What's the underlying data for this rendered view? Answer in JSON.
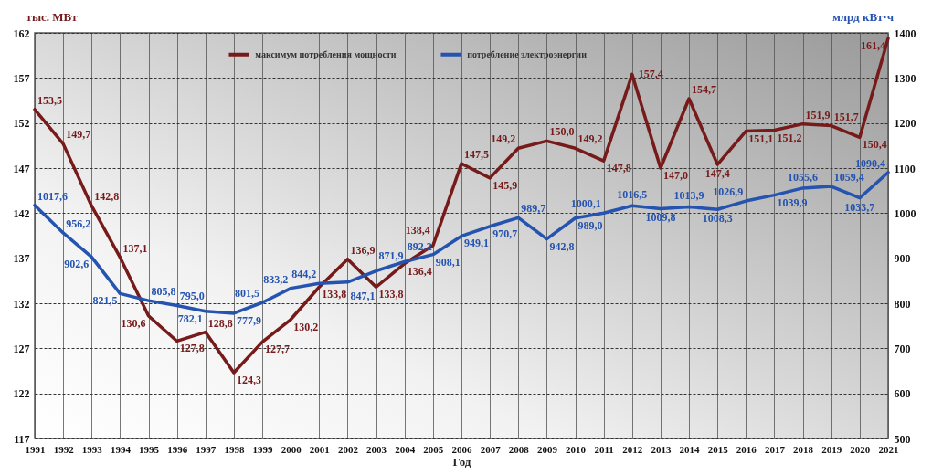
{
  "chart_data": {
    "type": "line",
    "xlabel": "Год",
    "ylabel": "тыс. МВт",
    "y2label": "млрд кВт·ч",
    "x": [
      1991,
      1992,
      1993,
      1994,
      1995,
      1996,
      1997,
      1998,
      1999,
      2000,
      2001,
      2002,
      2003,
      2004,
      2005,
      2006,
      2007,
      2008,
      2009,
      2010,
      2011,
      2012,
      2013,
      2014,
      2015,
      2016,
      2017,
      2018,
      2019,
      2020,
      2021
    ],
    "xlim": [
      1991,
      2021
    ],
    "xticks": [
      1991,
      1992,
      1993,
      1994,
      1995,
      1996,
      1997,
      1998,
      1999,
      2000,
      2001,
      2002,
      2003,
      2004,
      2005,
      2006,
      2007,
      2008,
      2009,
      2010,
      2011,
      2012,
      2013,
      2014,
      2015,
      2016,
      2017,
      2018,
      2019,
      2020,
      2021
    ],
    "ylim": [
      117,
      162
    ],
    "yticks": [
      117,
      122,
      127,
      132,
      137,
      142,
      147,
      152,
      157,
      162
    ],
    "y2lim": [
      500,
      1400
    ],
    "y2ticks": [
      500,
      600,
      700,
      800,
      900,
      1000,
      1100,
      1200,
      1300,
      1400
    ],
    "grid": true,
    "legend": "top",
    "series": [
      {
        "name": "максимум потребления мощности",
        "color": "#761a1a",
        "values": [
          153.5,
          149.7,
          142.8,
          137.1,
          130.6,
          127.8,
          128.8,
          124.3,
          127.7,
          130.2,
          133.8,
          136.9,
          133.8,
          136.4,
          138.4,
          147.5,
          145.9,
          149.2,
          150.0,
          149.2,
          147.8,
          157.4,
          147.0,
          154.7,
          147.4,
          151.1,
          151.2,
          151.9,
          151.7,
          150.4,
          161.4
        ],
        "value_labels": [
          "153,5",
          "149,7",
          "142,8",
          "137,1",
          "130,6",
          "127,8",
          "128,8",
          "124,3",
          "127,7",
          "130,2",
          "133,8",
          "136,9",
          "133,8",
          "136,4",
          "138,4",
          "147,5",
          "145,9",
          "149,2",
          "150,0",
          "149,2",
          "147,8",
          "157,4",
          "147,0",
          "154,7",
          "147,4",
          "151,1",
          "151,2",
          "151,9",
          "151,7",
          "150,4",
          "161,4"
        ]
      },
      {
        "name": "потребление электроэнергии",
        "color": "#2553b0",
        "axis": "y2",
        "values": [
          1017.6,
          956.2,
          902.6,
          821.5,
          805.8,
          795.0,
          782.1,
          777.9,
          801.5,
          833.2,
          844.2,
          847.1,
          871.9,
          892.2,
          908.1,
          949.1,
          970.7,
          989.7,
          942.8,
          989.0,
          1000.1,
          1016.5,
          1009.8,
          1013.9,
          1008.3,
          1026.9,
          1039.9,
          1055.6,
          1059.4,
          1033.7,
          1090.4
        ],
        "value_labels": [
          "1017,6",
          "956,2",
          "902,6",
          "821,5",
          "805,8",
          "795,0",
          "782,1",
          "777,9",
          "801,5",
          "833,2",
          "844,2",
          "847,1",
          "871,9",
          "892,2",
          "908,1",
          "949,1",
          "970,7",
          "989,7",
          "942,8",
          "989,0",
          "1000,1",
          "1016,5",
          "1009,8",
          "1013,9",
          "1008,3",
          "1026,9",
          "1039,9",
          "1055,6",
          "1059,4",
          "1033,7",
          "1090,4"
        ]
      }
    ]
  }
}
